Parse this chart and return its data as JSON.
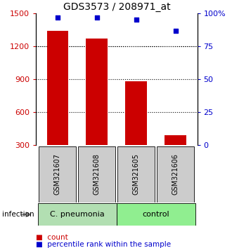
{
  "title": "GDS3573 / 208971_at",
  "samples": [
    "GSM321607",
    "GSM321608",
    "GSM321605",
    "GSM321606"
  ],
  "counts": [
    1340,
    1270,
    880,
    390
  ],
  "percentiles": [
    97,
    97,
    95.5,
    87
  ],
  "ylim_left": [
    300,
    1500
  ],
  "ylim_right": [
    0,
    100
  ],
  "yticks_left": [
    300,
    600,
    900,
    1200,
    1500
  ],
  "yticks_right": [
    0,
    25,
    50,
    75,
    100
  ],
  "yticklabels_right": [
    "0",
    "25",
    "50",
    "75",
    "100%"
  ],
  "bar_color": "#cc0000",
  "scatter_color": "#0000cc",
  "box_color": "#cccccc",
  "grp1_color": "#b2dfb2",
  "grp2_color": "#90ee90",
  "grp1_label": "C. pneumonia",
  "grp2_label": "control",
  "infection_label": "infection",
  "legend_count_label": "count",
  "legend_pct_label": "percentile rank within the sample",
  "title_fontsize": 10,
  "tick_fontsize": 8,
  "sample_fontsize": 7,
  "grp_fontsize": 8,
  "legend_fontsize": 7.5,
  "fig_width": 3.3,
  "fig_height": 3.54,
  "dpi": 100
}
